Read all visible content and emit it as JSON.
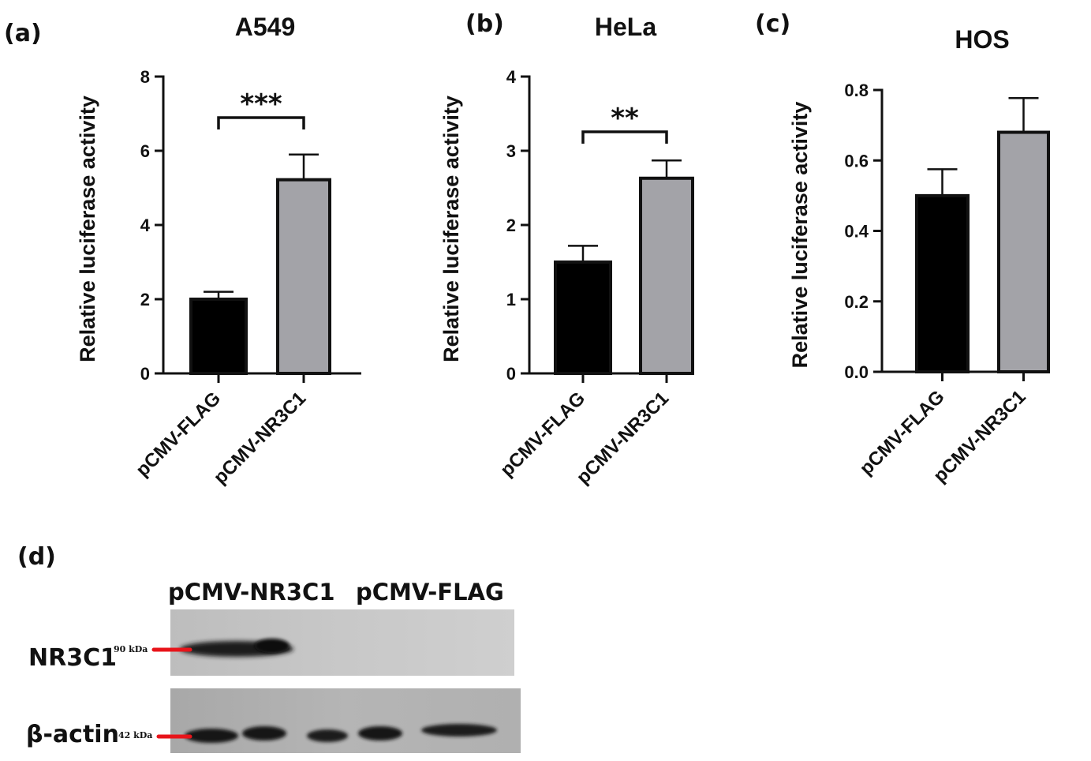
{
  "chart_data": [
    {
      "type": "bar",
      "panel": "(a)",
      "title": "A549",
      "ylabel": "Relative luciferase activity",
      "categories": [
        "pCMV-FLAG",
        "pCMV-NR3C1"
      ],
      "values": [
        2.0,
        5.22
      ],
      "errors": [
        0.2,
        0.68
      ],
      "yticks": [
        "0",
        "2",
        "4",
        "6",
        "8"
      ],
      "ylim": [
        0,
        8
      ],
      "significance": "***",
      "colors": [
        "#000000",
        "#a3a3a8"
      ]
    },
    {
      "type": "bar",
      "panel": "(b)",
      "title": "HeLa",
      "ylabel": "Relative luciferase activity",
      "categories": [
        "pCMV-FLAG",
        "pCMV-NR3C1"
      ],
      "values": [
        1.5,
        2.63
      ],
      "errors": [
        0.22,
        0.24
      ],
      "yticks": [
        "0",
        "1",
        "2",
        "3",
        "4"
      ],
      "ylim": [
        0,
        4
      ],
      "significance": "**",
      "colors": [
        "#000000",
        "#a3a3a8"
      ]
    },
    {
      "type": "bar",
      "panel": "(c)",
      "title": "HOS",
      "ylabel": "Relative luciferase activity",
      "categories": [
        "pCMV-FLAG",
        "pCMV-NR3C1"
      ],
      "values": [
        0.5,
        0.68
      ],
      "errors": [
        0.075,
        0.097
      ],
      "yticks": [
        "0.0",
        "0.2",
        "0.4",
        "0.6",
        "0.8"
      ],
      "ylim": [
        0,
        0.8
      ],
      "significance": "",
      "colors": [
        "#000000",
        "#a3a3a8"
      ]
    }
  ],
  "western_blot": {
    "panel": "(d)",
    "lanes": [
      "pCMV-NR3C1",
      "pCMV-FLAG"
    ],
    "rows": [
      {
        "label": "NR3C1",
        "marker": "90 kDa"
      },
      {
        "label": "β-actin",
        "marker": "42 kDa"
      }
    ],
    "marker_color": "#e8141a"
  }
}
